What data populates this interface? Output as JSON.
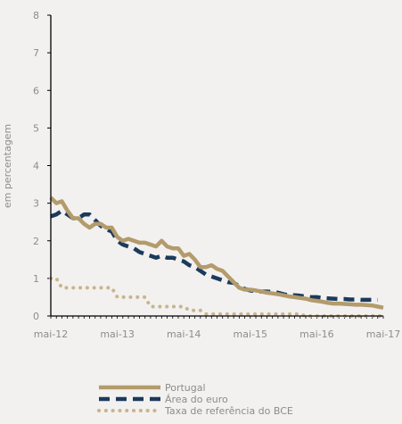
{
  "chart_data": {
    "type": "line",
    "title": "",
    "xlabel": "",
    "ylabel": "em percentagem",
    "ylim": [
      0,
      8
    ],
    "yticks": [
      0,
      1,
      2,
      3,
      4,
      5,
      6,
      7,
      8
    ],
    "xlim": [
      "2012-05",
      "2017-05"
    ],
    "xticks": [
      "mai-12",
      "mai-13",
      "mai-14",
      "mai-15",
      "mai-16",
      "mai-17"
    ],
    "grid": false,
    "legend_position": "bottom-center",
    "series": [
      {
        "name": "Portugal",
        "color": "#b39b6b",
        "style": "solid",
        "points": [
          [
            "2012-05",
            3.15
          ],
          [
            "2012-06",
            3.0
          ],
          [
            "2012-07",
            3.05
          ],
          [
            "2012-08",
            2.8
          ],
          [
            "2012-09",
            2.6
          ],
          [
            "2012-10",
            2.6
          ],
          [
            "2012-11",
            2.45
          ],
          [
            "2012-12",
            2.35
          ],
          [
            "2013-01",
            2.45
          ],
          [
            "2013-02",
            2.45
          ],
          [
            "2013-03",
            2.35
          ],
          [
            "2013-04",
            2.35
          ],
          [
            "2013-05",
            2.1
          ],
          [
            "2013-06",
            2.0
          ],
          [
            "2013-07",
            2.05
          ],
          [
            "2013-08",
            2.0
          ],
          [
            "2013-09",
            1.95
          ],
          [
            "2013-10",
            1.95
          ],
          [
            "2013-11",
            1.9
          ],
          [
            "2013-12",
            1.85
          ],
          [
            "2014-01",
            2.0
          ],
          [
            "2014-02",
            1.85
          ],
          [
            "2014-03",
            1.8
          ],
          [
            "2014-04",
            1.8
          ],
          [
            "2014-05",
            1.6
          ],
          [
            "2014-06",
            1.65
          ],
          [
            "2014-07",
            1.5
          ],
          [
            "2014-08",
            1.3
          ],
          [
            "2014-09",
            1.3
          ],
          [
            "2014-10",
            1.35
          ],
          [
            "2014-11",
            1.25
          ],
          [
            "2014-12",
            1.2
          ],
          [
            "2015-01",
            1.05
          ],
          [
            "2015-02",
            0.9
          ],
          [
            "2015-03",
            0.75
          ],
          [
            "2015-04",
            0.7
          ],
          [
            "2015-05",
            0.7
          ],
          [
            "2015-06",
            0.68
          ],
          [
            "2015-07",
            0.65
          ],
          [
            "2015-08",
            0.62
          ],
          [
            "2015-09",
            0.6
          ],
          [
            "2015-10",
            0.58
          ],
          [
            "2015-11",
            0.55
          ],
          [
            "2015-12",
            0.52
          ],
          [
            "2016-01",
            0.5
          ],
          [
            "2016-02",
            0.48
          ],
          [
            "2016-03",
            0.46
          ],
          [
            "2016-04",
            0.42
          ],
          [
            "2016-05",
            0.4
          ],
          [
            "2016-06",
            0.38
          ],
          [
            "2016-07",
            0.35
          ],
          [
            "2016-08",
            0.33
          ],
          [
            "2016-09",
            0.33
          ],
          [
            "2016-10",
            0.32
          ],
          [
            "2016-11",
            0.31
          ],
          [
            "2016-12",
            0.3
          ],
          [
            "2017-01",
            0.3
          ],
          [
            "2017-02",
            0.29
          ],
          [
            "2017-03",
            0.28
          ],
          [
            "2017-04",
            0.25
          ],
          [
            "2017-05",
            0.22
          ]
        ]
      },
      {
        "name": "Área do euro",
        "color": "#1b3a5c",
        "style": "dashed",
        "points": [
          [
            "2012-05",
            2.65
          ],
          [
            "2012-06",
            2.7
          ],
          [
            "2012-07",
            2.8
          ],
          [
            "2012-08",
            2.7
          ],
          [
            "2012-09",
            2.6
          ],
          [
            "2012-10",
            2.6
          ],
          [
            "2012-11",
            2.7
          ],
          [
            "2012-12",
            2.7
          ],
          [
            "2013-01",
            2.55
          ],
          [
            "2013-02",
            2.4
          ],
          [
            "2013-03",
            2.3
          ],
          [
            "2013-04",
            2.25
          ],
          [
            "2013-05",
            2.0
          ],
          [
            "2013-06",
            1.9
          ],
          [
            "2013-07",
            1.85
          ],
          [
            "2013-08",
            1.8
          ],
          [
            "2013-09",
            1.7
          ],
          [
            "2013-10",
            1.65
          ],
          [
            "2013-11",
            1.6
          ],
          [
            "2013-12",
            1.55
          ],
          [
            "2014-01",
            1.6
          ],
          [
            "2014-02",
            1.55
          ],
          [
            "2014-03",
            1.55
          ],
          [
            "2014-04",
            1.5
          ],
          [
            "2014-05",
            1.45
          ],
          [
            "2014-06",
            1.35
          ],
          [
            "2014-07",
            1.3
          ],
          [
            "2014-08",
            1.2
          ],
          [
            "2014-09",
            1.1
          ],
          [
            "2014-10",
            1.05
          ],
          [
            "2014-11",
            1.0
          ],
          [
            "2014-12",
            0.95
          ],
          [
            "2015-01",
            0.9
          ],
          [
            "2015-02",
            0.88
          ],
          [
            "2015-03",
            0.8
          ],
          [
            "2015-04",
            0.72
          ],
          [
            "2015-05",
            0.68
          ],
          [
            "2015-06",
            0.66
          ],
          [
            "2015-07",
            0.65
          ],
          [
            "2015-08",
            0.65
          ],
          [
            "2015-09",
            0.64
          ],
          [
            "2015-10",
            0.62
          ],
          [
            "2015-11",
            0.58
          ],
          [
            "2015-12",
            0.55
          ],
          [
            "2016-01",
            0.55
          ],
          [
            "2016-02",
            0.54
          ],
          [
            "2016-03",
            0.52
          ],
          [
            "2016-04",
            0.5
          ],
          [
            "2016-05",
            0.5
          ],
          [
            "2016-06",
            0.48
          ],
          [
            "2016-07",
            0.47
          ],
          [
            "2016-08",
            0.46
          ],
          [
            "2016-09",
            0.45
          ],
          [
            "2016-10",
            0.45
          ],
          [
            "2016-11",
            0.44
          ],
          [
            "2016-12",
            0.44
          ],
          [
            "2017-01",
            0.43
          ],
          [
            "2017-02",
            0.43
          ],
          [
            "2017-03",
            0.43
          ],
          [
            "2017-04",
            0.43
          ]
        ]
      },
      {
        "name": "Taxa de referência do BCE",
        "color": "#c9b48d",
        "style": "dotted",
        "points": [
          [
            "2012-05",
            1.0
          ],
          [
            "2012-06",
            1.0
          ],
          [
            "2012-07",
            0.75
          ],
          [
            "2012-08",
            0.75
          ],
          [
            "2012-09",
            0.75
          ],
          [
            "2012-10",
            0.75
          ],
          [
            "2012-11",
            0.75
          ],
          [
            "2012-12",
            0.75
          ],
          [
            "2013-01",
            0.75
          ],
          [
            "2013-02",
            0.75
          ],
          [
            "2013-03",
            0.75
          ],
          [
            "2013-04",
            0.75
          ],
          [
            "2013-05",
            0.5
          ],
          [
            "2013-06",
            0.5
          ],
          [
            "2013-07",
            0.5
          ],
          [
            "2013-08",
            0.5
          ],
          [
            "2013-09",
            0.5
          ],
          [
            "2013-10",
            0.5
          ],
          [
            "2013-11",
            0.25
          ],
          [
            "2013-12",
            0.25
          ],
          [
            "2014-01",
            0.25
          ],
          [
            "2014-02",
            0.25
          ],
          [
            "2014-03",
            0.25
          ],
          [
            "2014-04",
            0.25
          ],
          [
            "2014-05",
            0.25
          ],
          [
            "2014-06",
            0.15
          ],
          [
            "2014-07",
            0.15
          ],
          [
            "2014-08",
            0.15
          ],
          [
            "2014-09",
            0.05
          ],
          [
            "2014-10",
            0.05
          ],
          [
            "2014-11",
            0.05
          ],
          [
            "2014-12",
            0.05
          ],
          [
            "2015-01",
            0.05
          ],
          [
            "2015-02",
            0.05
          ],
          [
            "2015-03",
            0.05
          ],
          [
            "2015-04",
            0.05
          ],
          [
            "2015-05",
            0.05
          ],
          [
            "2015-06",
            0.05
          ],
          [
            "2015-07",
            0.05
          ],
          [
            "2015-08",
            0.05
          ],
          [
            "2015-09",
            0.05
          ],
          [
            "2015-10",
            0.05
          ],
          [
            "2015-11",
            0.05
          ],
          [
            "2015-12",
            0.05
          ],
          [
            "2016-01",
            0.05
          ],
          [
            "2016-02",
            0.05
          ],
          [
            "2016-03",
            0.0
          ],
          [
            "2016-04",
            0.0
          ],
          [
            "2016-05",
            0.0
          ],
          [
            "2016-06",
            0.0
          ],
          [
            "2016-07",
            0.0
          ],
          [
            "2016-08",
            0.0
          ],
          [
            "2016-09",
            0.0
          ],
          [
            "2016-10",
            0.0
          ],
          [
            "2016-11",
            0.0
          ],
          [
            "2016-12",
            0.0
          ],
          [
            "2017-01",
            0.0
          ],
          [
            "2017-02",
            0.0
          ],
          [
            "2017-03",
            0.0
          ],
          [
            "2017-04",
            0.0
          ],
          [
            "2017-05",
            0.0
          ]
        ]
      }
    ]
  }
}
